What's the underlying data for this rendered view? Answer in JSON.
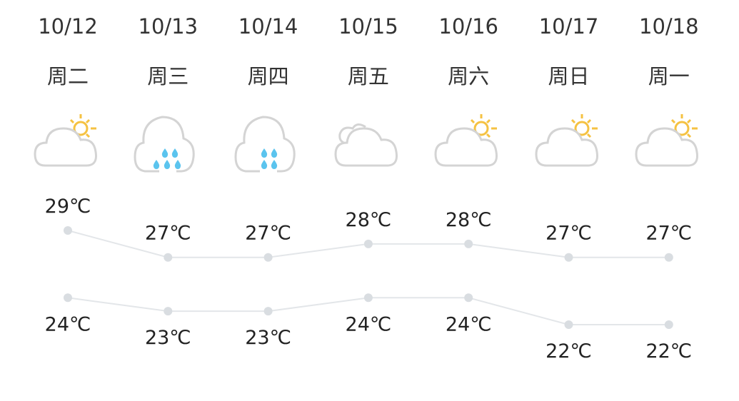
{
  "days": [
    {
      "date": "10/12",
      "weekday": "周二",
      "icon": "partly-sunny-icon",
      "high": "29℃",
      "low": "24℃"
    },
    {
      "date": "10/13",
      "weekday": "周三",
      "icon": "moderate-rain-icon",
      "high": "27℃",
      "low": "23℃"
    },
    {
      "date": "10/14",
      "weekday": "周四",
      "icon": "light-rain-icon",
      "high": "27℃",
      "low": "23℃"
    },
    {
      "date": "10/15",
      "weekday": "周五",
      "icon": "cloudy-icon",
      "high": "28℃",
      "low": "24℃"
    },
    {
      "date": "10/16",
      "weekday": "周六",
      "icon": "partly-sunny-icon",
      "high": "28℃",
      "low": "24℃"
    },
    {
      "date": "10/17",
      "weekday": "周日",
      "icon": "partly-sunny-icon",
      "high": "27℃",
      "low": "22℃"
    },
    {
      "date": "10/18",
      "weekday": "周一",
      "icon": "partly-sunny-icon",
      "high": "27℃",
      "low": "22℃"
    }
  ],
  "chart_data": {
    "type": "line",
    "categories": [
      "10/12",
      "10/13",
      "10/14",
      "10/15",
      "10/16",
      "10/17",
      "10/18"
    ],
    "series": [
      {
        "values": [
          29,
          27,
          27,
          28,
          28,
          27,
          27
        ]
      },
      {
        "values": [
          24,
          23,
          23,
          24,
          24,
          22,
          22
        ]
      }
    ],
    "unit": "℃"
  },
  "colors": {
    "line": "#e3e6e9",
    "point": "#d9dde1",
    "cloud": "#d4d4d4",
    "sun": "#f5c242",
    "rain": "#5bc4ee"
  }
}
